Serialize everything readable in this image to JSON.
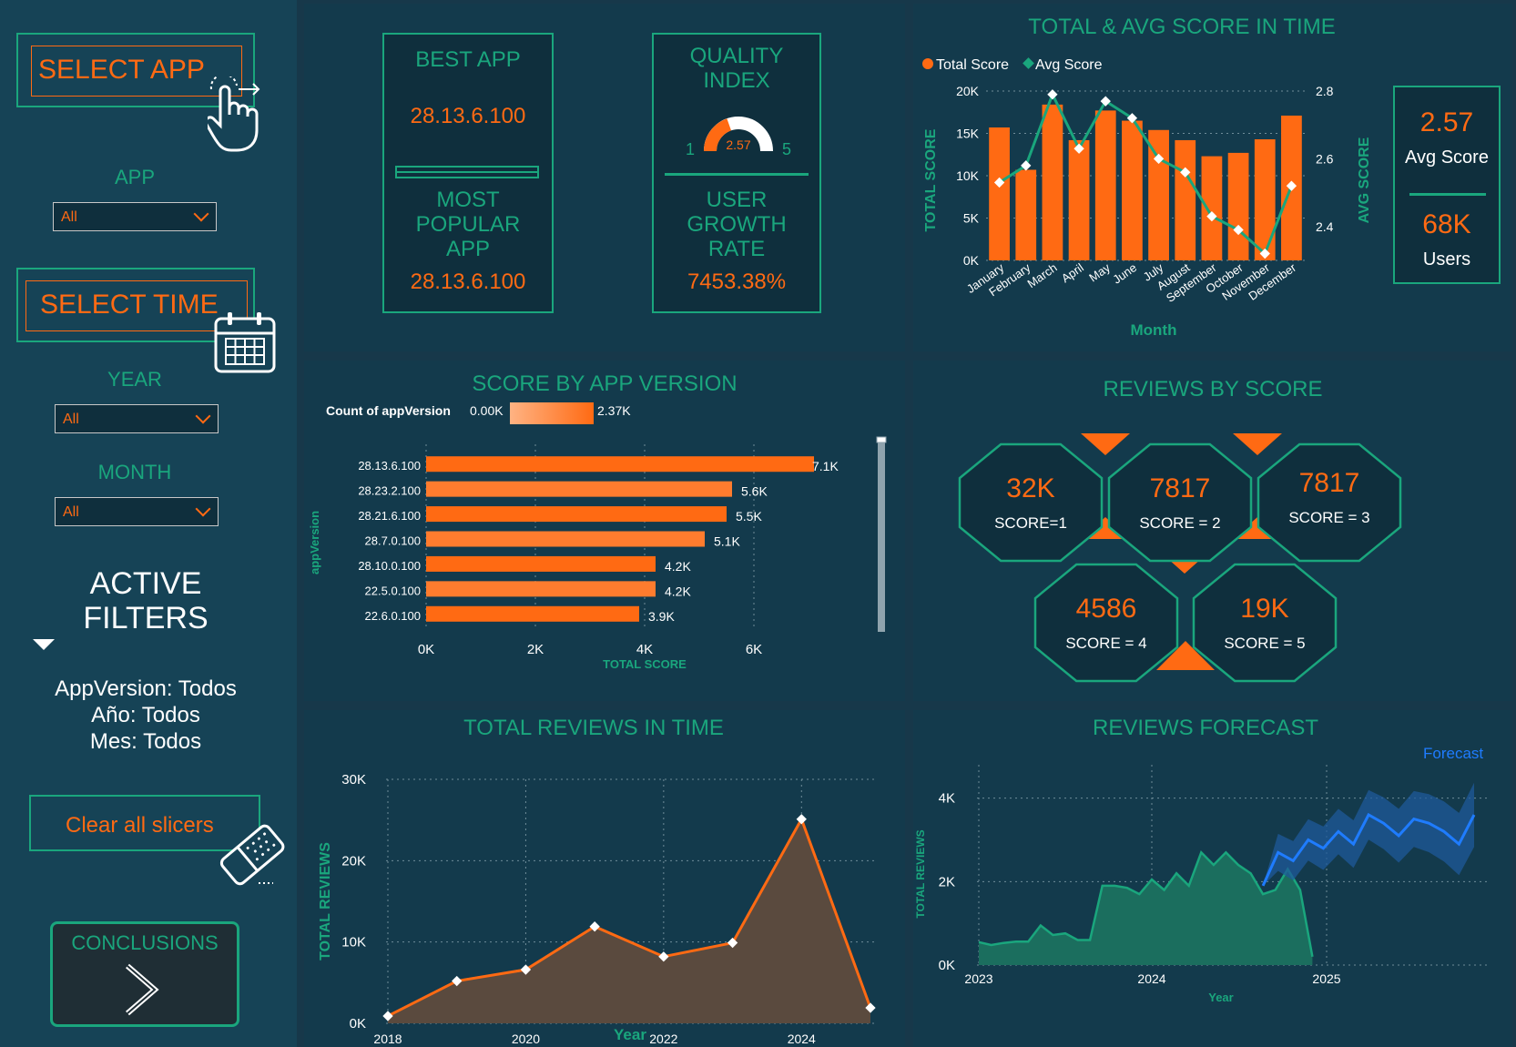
{
  "sidebar": {
    "select_app": "SELECT APP",
    "app_label": "APP",
    "app_value": "All",
    "select_time": "SELECT TIME",
    "year_label": "YEAR",
    "year_value": "All",
    "month_label": "MONTH",
    "month_value": "All",
    "active_filters_1": "ACTIVE",
    "active_filters_2": "FILTERS",
    "filter_app": "AppVersion: Todos",
    "filter_year": "Año: Todos",
    "filter_month": "Mes: Todos",
    "clear_label": "Clear all slicers",
    "conclusions_label": "CONCLUSIONS"
  },
  "kpi": {
    "best_app_title": "BEST APP",
    "best_app_value": "28.13.6.100",
    "popular_title_1": "MOST",
    "popular_title_2": "POPULAR",
    "popular_title_3": "APP",
    "popular_value": "28.13.6.100",
    "quality_title_1": "QUALITY",
    "quality_title_2": "INDEX",
    "gauge_min": "1",
    "gauge_max": "5",
    "gauge_value": "2.57",
    "growth_title_1": "USER",
    "growth_title_2": "GROWTH",
    "growth_title_3": "RATE",
    "growth_value": "7453.38%",
    "avg_score_value": "2.57",
    "avg_score_label": "Avg Score",
    "users_value": "68K",
    "users_label": "Users"
  },
  "colors": {
    "teal": "#1aa67d",
    "orange": "#ff6a13",
    "blue": "#1f7cff",
    "bg": "#133a4c"
  },
  "reviews_by_score": {
    "title": "REVIEWS BY SCORE",
    "items": [
      {
        "value": "32K",
        "label": "SCORE=1"
      },
      {
        "value": "7817",
        "label": "SCORE = 2"
      },
      {
        "value": "7817",
        "label": "SCORE = 3"
      },
      {
        "value": "4586",
        "label": "SCORE = 4"
      },
      {
        "value": "19K",
        "label": "SCORE = 5"
      }
    ]
  },
  "chart_data": [
    {
      "id": "score_time",
      "type": "bar",
      "title": "TOTAL & AVG SCORE IN TIME",
      "xlabel": "Month",
      "ylabel": "TOTAL SCORE",
      "y2label": "AVG SCORE",
      "legend": [
        "Total Score",
        "Avg Score"
      ],
      "categories": [
        "January",
        "February",
        "March",
        "April",
        "May",
        "June",
        "July",
        "August",
        "September",
        "October",
        "November",
        "December"
      ],
      "series": [
        {
          "name": "Total Score",
          "values": [
            15700,
            10700,
            18400,
            14200,
            17700,
            16500,
            15400,
            14200,
            12300,
            12700,
            14300,
            17100
          ]
        },
        {
          "name": "Avg Score",
          "values": [
            2.53,
            2.58,
            2.79,
            2.63,
            2.77,
            2.72,
            2.6,
            2.56,
            2.43,
            2.39,
            2.32,
            2.52
          ]
        }
      ],
      "ylim": [
        0,
        20000
      ],
      "yticks": [
        "0K",
        "5K",
        "10K",
        "15K",
        "20K"
      ],
      "y2lim": [
        2.3,
        2.8
      ],
      "y2ticks": [
        "2.4",
        "2.6",
        "2.8"
      ]
    },
    {
      "id": "score_version",
      "type": "bar",
      "title": "SCORE BY APP VERSION",
      "xlabel": "TOTAL SCORE",
      "ylabel": "appVersion",
      "legend_title": "Count of appVersion",
      "legend_min": "0.00K",
      "legend_max": "2.37K",
      "categories": [
        "28.13.6.100",
        "28.23.2.100",
        "28.21.6.100",
        "28.7.0.100",
        "28.10.0.100",
        "22.5.0.100",
        "22.6.0.100"
      ],
      "values": [
        7100,
        5600,
        5500,
        5100,
        4200,
        4200,
        3900
      ],
      "labels": [
        "7.1K",
        "5.6K",
        "5.5K",
        "5.1K",
        "4.2K",
        "4.2K",
        "3.9K"
      ],
      "xlim": [
        0,
        8000
      ],
      "xticks": [
        "0K",
        "2K",
        "4K",
        "6K"
      ]
    },
    {
      "id": "reviews_time",
      "type": "area",
      "title": "TOTAL REVIEWS IN TIME",
      "xlabel": "Year",
      "ylabel": "TOTAL REVIEWS",
      "x": [
        2018,
        2019,
        2020,
        2021,
        2022,
        2023,
        2024,
        2025
      ],
      "values": [
        900,
        5200,
        6600,
        11900,
        8200,
        9900,
        25100,
        1900
      ],
      "ylim": [
        0,
        30000
      ],
      "yticks": [
        "0K",
        "10K",
        "20K",
        "30K"
      ],
      "xticks": [
        "2018",
        "2020",
        "2022",
        "2024"
      ]
    },
    {
      "id": "reviews_forecast",
      "type": "area",
      "title": "REVIEWS FORECAST",
      "xlabel": "Year",
      "ylabel": "TOTAL REVIEWS",
      "legend": [
        "Forecast"
      ],
      "actual": [
        550,
        480,
        530,
        560,
        560,
        950,
        720,
        760,
        600,
        600,
        1900,
        1900,
        1850,
        1700,
        2050,
        1800,
        2200,
        1900,
        2700,
        2400,
        2700,
        2400,
        2200,
        1700,
        1800,
        2300,
        1800,
        200
      ],
      "forecast": [
        1900,
        2700,
        2500,
        3000,
        2800,
        3200,
        2900,
        3600,
        3400,
        3100,
        3500,
        3400,
        3200,
        2900,
        3600
      ],
      "ylim": [
        0,
        4800
      ],
      "yticks": [
        "0K",
        "2K",
        "4K"
      ],
      "xticks": [
        "2023",
        "2024",
        "2025"
      ]
    }
  ]
}
